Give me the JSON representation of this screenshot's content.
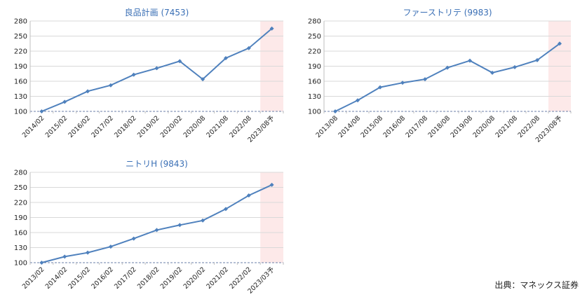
{
  "source_note": "出典：マネックス証券",
  "chart_data": [
    {
      "type": "line",
      "title": "良品計画 (7453)",
      "categories": [
        "2014/02",
        "2015/02",
        "2016/02",
        "2017/02",
        "2018/02",
        "2019/02",
        "2020/02",
        "2020/08",
        "2021/08",
        "2022/08",
        "2023/08予"
      ],
      "values": [
        100,
        119,
        140,
        152,
        173,
        186,
        200,
        164,
        206,
        226,
        265
      ],
      "ylim": [
        100,
        280
      ],
      "yticks": [
        100,
        130,
        160,
        190,
        220,
        250,
        280
      ],
      "forecast_last": true,
      "grid": true,
      "colors": {
        "line": "#4f81bd",
        "marker": "#4f81bd",
        "forecast_band": "#fde9e9",
        "title": "#3a6fb5"
      }
    },
    {
      "type": "line",
      "title": "ファーストリテ (9983)",
      "categories": [
        "2013/08",
        "2014/08",
        "2015/08",
        "2016/08",
        "2017/08",
        "2018/08",
        "2019/08",
        "2020/08",
        "2021/08",
        "2022/08",
        "2023/08予"
      ],
      "values": [
        100,
        122,
        148,
        157,
        164,
        187,
        201,
        177,
        188,
        202,
        235
      ],
      "ylim": [
        100,
        280
      ],
      "yticks": [
        100,
        130,
        160,
        190,
        220,
        250,
        280
      ],
      "forecast_last": true,
      "grid": true,
      "colors": {
        "line": "#4f81bd",
        "marker": "#4f81bd",
        "forecast_band": "#fde9e9",
        "title": "#3a6fb5"
      }
    },
    {
      "type": "line",
      "title": "ニトリH (9843)",
      "categories": [
        "2013/02",
        "2014/02",
        "2015/02",
        "2016/02",
        "2017/02",
        "2018/02",
        "2019/02",
        "2020/02",
        "2021/02",
        "2022/02",
        "2023/03予"
      ],
      "values": [
        100,
        112,
        120,
        132,
        148,
        165,
        175,
        184,
        207,
        234,
        255
      ],
      "ylim": [
        100,
        280
      ],
      "yticks": [
        100,
        130,
        160,
        190,
        220,
        250,
        280
      ],
      "forecast_last": true,
      "grid": true,
      "colors": {
        "line": "#4f81bd",
        "marker": "#4f81bd",
        "forecast_band": "#fde9e9",
        "title": "#3a6fb5"
      }
    }
  ]
}
